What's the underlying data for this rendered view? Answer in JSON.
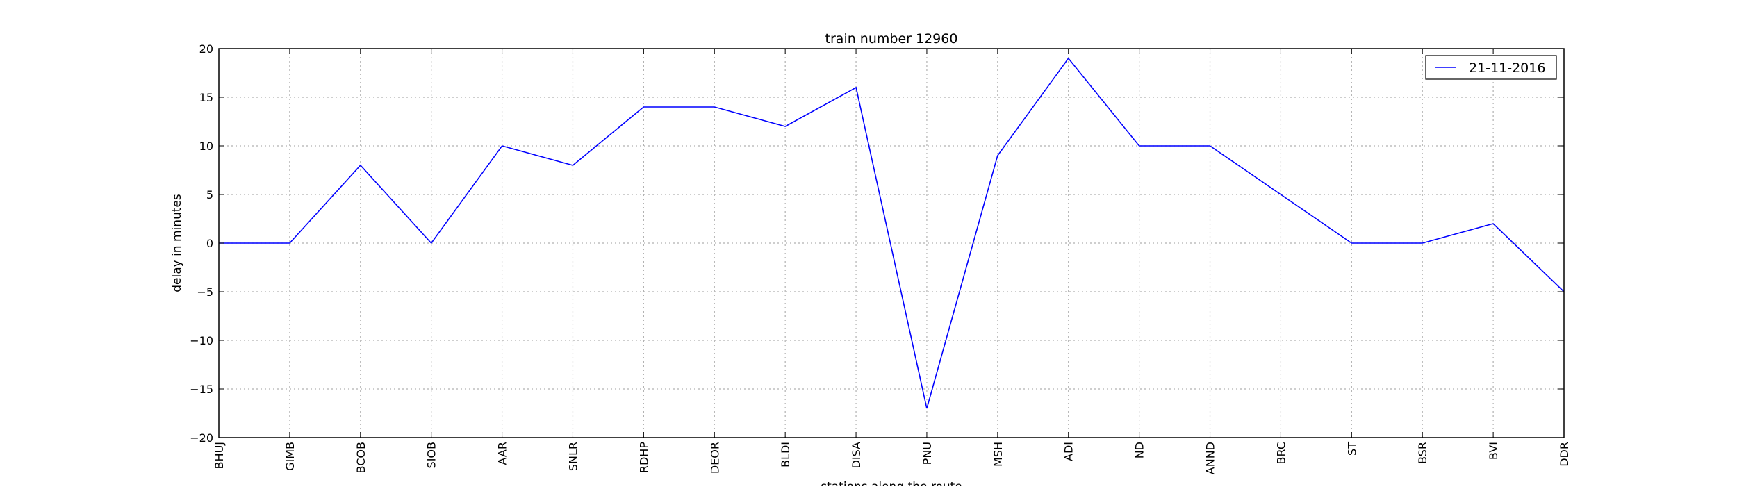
{
  "chart_data": {
    "type": "line",
    "title": "train number 12960",
    "xlabel": "stations along the route",
    "ylabel": "delay in minutes",
    "categories": [
      "BHUJ",
      "GIMB",
      "BCOB",
      "SIOB",
      "AAR",
      "SNLR",
      "RDHP",
      "DEOR",
      "BLDI",
      "DISA",
      "PNU",
      "MSH",
      "ADI",
      "ND",
      "ANND",
      "BRC",
      "ST",
      "BSR",
      "BVI",
      "DDR"
    ],
    "series": [
      {
        "name": "21-11-2016",
        "color": "#0000ff",
        "values": [
          0,
          0,
          8,
          0,
          10,
          8,
          14,
          14,
          12,
          16,
          -17,
          9,
          19,
          10,
          10,
          5,
          0,
          0,
          2,
          -5
        ]
      }
    ],
    "ylim": [
      -20,
      20
    ],
    "yticks": [
      "20",
      "15",
      "10",
      "5",
      "0",
      "−5",
      "−10",
      "−15",
      "−20"
    ],
    "grid": true,
    "legend_position": "top-right"
  }
}
